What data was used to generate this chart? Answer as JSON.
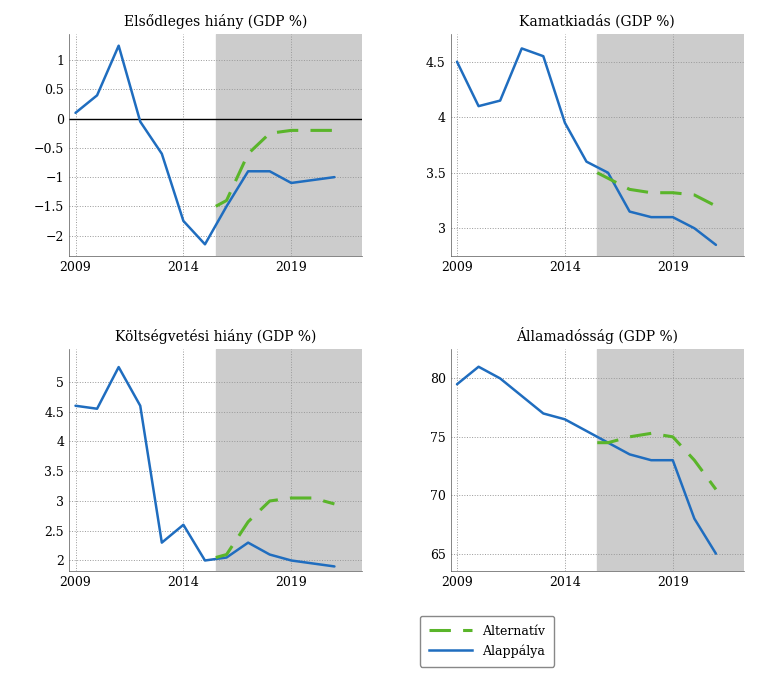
{
  "titles": [
    "Elsődleges hiány (GDP %)",
    "Kamatkiadás (GDP %)",
    "Költségvetési hiány (GDP %)",
    "Államadósság (GDP %)"
  ],
  "shade_start": 2015.5,
  "shade_end": 2022.3,
  "x_min": 2008.7,
  "x_max": 2022.3,
  "x_ticks": [
    2009,
    2014,
    2019
  ],
  "blue_color": "#1f6dbf",
  "green_color": "#5ab52a",
  "bg_color": "#cccccc",
  "legend_labels": [
    "Alternatív",
    "Alappálya"
  ],
  "plot1": {
    "blue_years": [
      2009,
      2010,
      2011,
      2012,
      2013,
      2014,
      2015,
      2016,
      2017,
      2018,
      2019,
      2020,
      2021
    ],
    "blue_vals": [
      0.1,
      0.4,
      1.25,
      -0.05,
      -0.6,
      -1.75,
      -2.15,
      -1.5,
      -0.9,
      -0.9,
      -1.1,
      -1.05,
      -1.0
    ],
    "green_years": [
      2015.5,
      2016,
      2017,
      2018,
      2019,
      2020,
      2021
    ],
    "green_vals": [
      -1.5,
      -1.4,
      -0.6,
      -0.25,
      -0.2,
      -0.2,
      -0.2
    ],
    "ylim": [
      -2.35,
      1.45
    ],
    "yticks": [
      -2.0,
      -1.5,
      -1.0,
      -0.5,
      0.0,
      0.5,
      1.0
    ],
    "hline": 0.0
  },
  "plot2": {
    "blue_years": [
      2009,
      2010,
      2011,
      2012,
      2013,
      2014,
      2015,
      2016,
      2017,
      2018,
      2019,
      2020,
      2021
    ],
    "blue_vals": [
      4.5,
      4.1,
      4.15,
      4.62,
      4.55,
      3.95,
      3.6,
      3.5,
      3.15,
      3.1,
      3.1,
      3.0,
      2.85
    ],
    "green_years": [
      2015.5,
      2016,
      2017,
      2018,
      2019,
      2020,
      2021
    ],
    "green_vals": [
      3.5,
      3.45,
      3.35,
      3.32,
      3.32,
      3.3,
      3.2
    ],
    "ylim": [
      2.75,
      4.75
    ],
    "yticks": [
      3.0,
      3.5,
      4.0,
      4.5
    ]
  },
  "plot3": {
    "blue_years": [
      2009,
      2010,
      2011,
      2012,
      2013,
      2014,
      2015,
      2016,
      2017,
      2018,
      2019,
      2020,
      2021
    ],
    "blue_vals": [
      4.6,
      4.55,
      5.25,
      4.6,
      2.3,
      2.6,
      2.0,
      2.05,
      2.3,
      2.1,
      2.0,
      1.95,
      1.9
    ],
    "green_years": [
      2015.5,
      2016,
      2017,
      2018,
      2019,
      2020,
      2021
    ],
    "green_vals": [
      2.05,
      2.1,
      2.65,
      3.0,
      3.05,
      3.05,
      2.95
    ],
    "ylim": [
      1.82,
      5.55
    ],
    "yticks": [
      2.0,
      2.5,
      3.0,
      3.5,
      4.0,
      4.5,
      5.0
    ]
  },
  "plot4": {
    "blue_years": [
      2009,
      2010,
      2011,
      2012,
      2013,
      2014,
      2015,
      2016,
      2017,
      2018,
      2019,
      2020,
      2021
    ],
    "blue_vals": [
      79.5,
      81.0,
      80.0,
      78.5,
      77.0,
      76.5,
      75.5,
      74.5,
      73.5,
      73.0,
      73.0,
      68.0,
      65.0
    ],
    "green_years": [
      2015.5,
      2016,
      2017,
      2018,
      2019,
      2020,
      2021
    ],
    "green_vals": [
      74.5,
      74.5,
      75.0,
      75.3,
      75.0,
      73.0,
      70.5
    ],
    "ylim": [
      63.5,
      82.5
    ],
    "yticks": [
      65,
      70,
      75,
      80
    ]
  }
}
